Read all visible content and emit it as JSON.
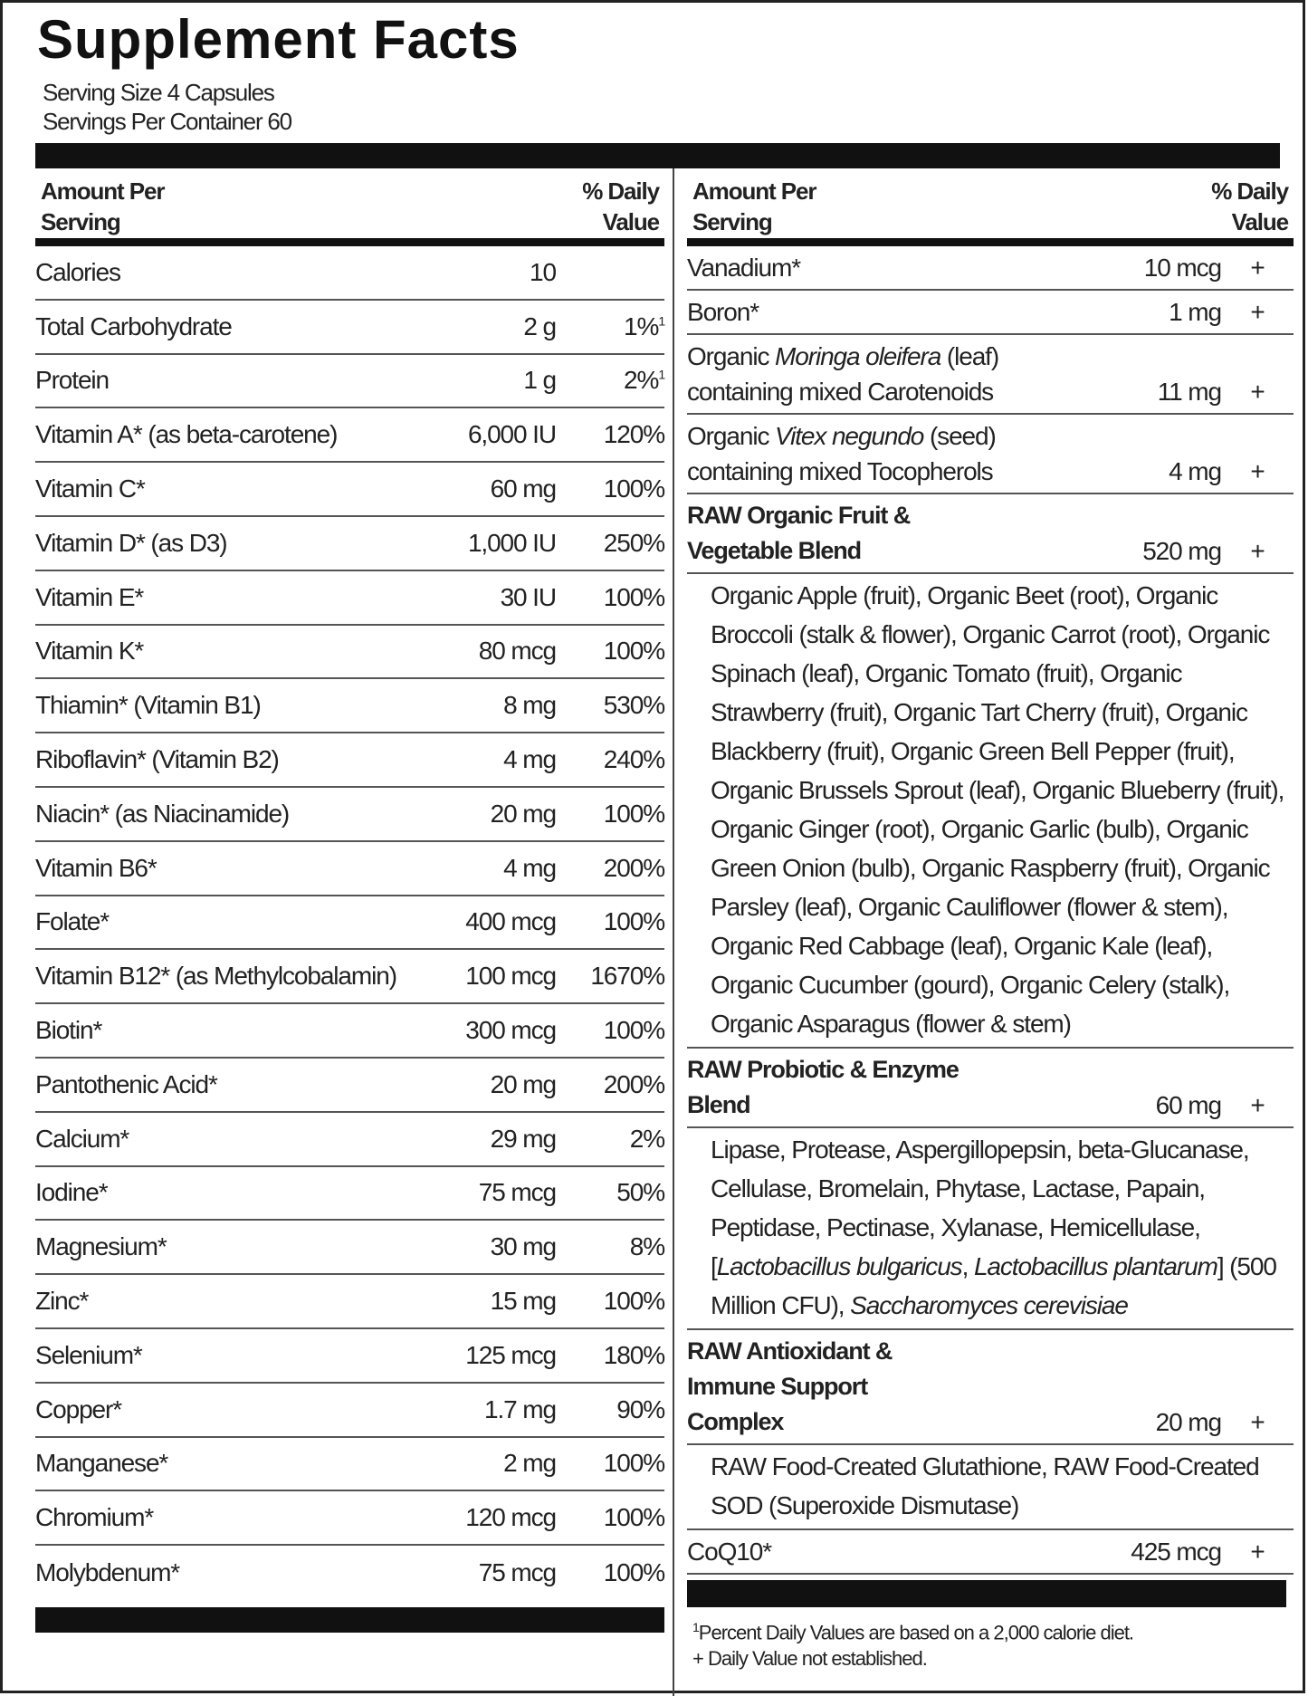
{
  "title": "Supplement Facts",
  "serving_size": "Serving Size 4 Capsules",
  "servings_per_container": "Servings Per Container 60",
  "left": {
    "header": {
      "amount": "Amount Per Serving",
      "dv": "% Daily Value"
    },
    "rows": [
      {
        "name": "Calories",
        "amount": "10"
      },
      {
        "name": "Total Carbohydrate",
        "amount": "2 g",
        "dv": "1%",
        "dv_note": "1"
      },
      {
        "name": "Protein",
        "amount": "1 g",
        "dv": "2%",
        "dv_note": "1"
      },
      {
        "name": "Vitamin A* (as beta-carotene)",
        "amount": "6,000 IU",
        "dv": "120%"
      },
      {
        "name": "Vitamin C*",
        "amount": "60 mg",
        "dv": "100%"
      },
      {
        "name": "Vitamin D* (as D3)",
        "amount": "1,000 IU",
        "dv": "250%"
      },
      {
        "name": "Vitamin E*",
        "amount": "30 IU",
        "dv": "100%"
      },
      {
        "name": "Vitamin K*",
        "amount": "80 mcg",
        "dv": "100%"
      },
      {
        "name": "Thiamin* (Vitamin B1)",
        "amount": "8 mg",
        "dv": "530%"
      },
      {
        "name": "Riboflavin* (Vitamin B2)",
        "amount": "4 mg",
        "dv": "240%"
      },
      {
        "name": "Niacin* (as Niacinamide)",
        "amount": "20 mg",
        "dv": "100%"
      },
      {
        "name": "Vitamin B6*",
        "amount": "4 mg",
        "dv": "200%"
      },
      {
        "name": "Folate*",
        "amount": "400 mcg",
        "dv": "100%"
      },
      {
        "name": "Vitamin B12* (as Methylcobalamin)",
        "amount": "100 mcg",
        "dv": "1670%"
      },
      {
        "name": "Biotin*",
        "amount": "300 mcg",
        "dv": "100%"
      },
      {
        "name": "Pantothenic Acid*",
        "amount": "20 mg",
        "dv": "200%"
      },
      {
        "name": "Calcium*",
        "amount": "29 mg",
        "dv": "2%"
      },
      {
        "name": "Iodine*",
        "amount": "75 mcg",
        "dv": "50%"
      },
      {
        "name": "Magnesium*",
        "amount": "30 mg",
        "dv": "8%"
      },
      {
        "name": "Zinc*",
        "amount": "15 mg",
        "dv": "100%"
      },
      {
        "name": "Selenium*",
        "amount": "125 mcg",
        "dv": "180%"
      },
      {
        "name": "Copper*",
        "amount": "1.7 mg",
        "dv": "90%"
      },
      {
        "name": "Manganese*",
        "amount": "2 mg",
        "dv": "100%"
      },
      {
        "name": "Chromium*",
        "amount": "120 mcg",
        "dv": "100%"
      },
      {
        "name": "Molybdenum*",
        "amount": "75 mcg",
        "dv": "100%"
      }
    ]
  },
  "right": {
    "header": {
      "amount": "Amount Per Serving",
      "dv": "% Daily Value"
    },
    "rows": [
      {
        "name": [
          {
            "text": "Vanadium*"
          }
        ],
        "amount": "10 mcg",
        "dv": "+"
      },
      {
        "name": [
          {
            "text": "Boron*"
          }
        ],
        "amount": "1 mg",
        "dv": "+"
      },
      {
        "name": [
          {
            "text": "Organic "
          },
          {
            "text": "Moringa oleifera",
            "italic": true
          },
          {
            "text": " (leaf) containing mixed Carotenoids"
          }
        ],
        "amount": "11 mg",
        "dv": "+"
      },
      {
        "name": [
          {
            "text": "Organic "
          },
          {
            "text": "Vitex negundo",
            "italic": true
          },
          {
            "text": " (seed) containing mixed Tocopherols"
          }
        ],
        "amount": "4 mg",
        "dv": "+"
      },
      {
        "name": [
          {
            "text": "RAW Organic Fruit & Vegetable Blend"
          }
        ],
        "bold": true,
        "amount": "520 mg",
        "dv": "+",
        "description": [
          {
            "text": "Organic Apple (fruit), Organic Beet (root), Organic Broccoli (stalk & flower), Organic Carrot (root), Organic Spinach (leaf), Organic Tomato (fruit), Organic Strawberry (fruit), Organic Tart Cherry (fruit), Organic Blackberry (fruit), Organic Green Bell Pepper (fruit), Organic Brussels Sprout (leaf), Organic Blueberry (fruit), Organic Ginger (root), Organic Garlic (bulb), Organic Green Onion (bulb), Organic Raspberry (fruit), Organic Parsley (leaf), Organic Cauliflower (flower & stem), Organic Red Cabbage (leaf), Organic Kale (leaf), Organic Cucumber (gourd), Organic Celery (stalk), Organic Asparagus (flower & stem)"
          }
        ]
      },
      {
        "name": [
          {
            "text": "RAW Probiotic & Enzyme Blend"
          }
        ],
        "bold": true,
        "amount": "60 mg",
        "dv": "+",
        "description": [
          {
            "text": "Lipase, Protease, Aspergillopepsin, beta-Glucanase, Cellulase, Bromelain, Phytase, Lactase, Papain, Peptidase, Pectinase, Xylanase, Hemicellulase, ["
          },
          {
            "text": "Lactobacillus bulgaricus",
            "italic": true
          },
          {
            "text": ", "
          },
          {
            "text": "Lactobacillus plantarum",
            "italic": true
          },
          {
            "text": "] (500 Million CFU), "
          },
          {
            "text": "Saccharomyces cerevisiae",
            "italic": true
          }
        ]
      },
      {
        "name": [
          {
            "text": "RAW Antioxidant & Immune Support Complex"
          }
        ],
        "bold": true,
        "amount": "20 mg",
        "dv": "+",
        "description": [
          {
            "text": "RAW Food-Created Glutathione, RAW Food-Created SOD (Superoxide Dismutase)"
          }
        ]
      },
      {
        "name": [
          {
            "text": "CoQ10*"
          }
        ],
        "amount": "425 mcg",
        "dv": "+"
      }
    ]
  },
  "footnotes": [
    {
      "mark": "1",
      "text": "Percent Daily Values are based on a 2,000 calorie diet."
    },
    {
      "text": "+ Daily Value not established."
    }
  ]
}
